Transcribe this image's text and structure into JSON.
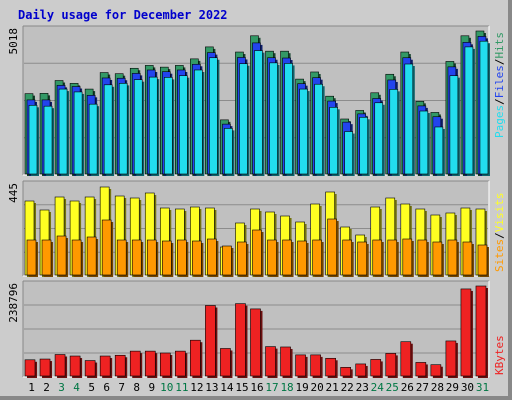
{
  "chart_title": "Daily usage for December 2022",
  "colors": {
    "hits": "#339966",
    "files": "#2244ee",
    "pages": "#22ddee",
    "visits": "#ffff22",
    "sites": "#ff9900",
    "kbytes": "#ee2222",
    "weekday_label": "#000000",
    "weekend_label": "#007744"
  },
  "chart_data": [
    {
      "type": "bar",
      "panel": "hits-files-pages",
      "max_label": "5018",
      "ylim": [
        0,
        5018
      ],
      "legend": [
        "Pages",
        "Files",
        "Hits"
      ],
      "x": [
        1,
        2,
        3,
        4,
        5,
        6,
        7,
        8,
        9,
        10,
        11,
        12,
        13,
        14,
        15,
        16,
        17,
        18,
        19,
        20,
        21,
        22,
        23,
        24,
        25,
        26,
        27,
        28,
        29,
        30,
        31
      ],
      "series": [
        {
          "name": "Hits",
          "values": [
            2820,
            2830,
            3280,
            3180,
            2980,
            3560,
            3520,
            3710,
            3810,
            3750,
            3810,
            4040,
            4460,
            1900,
            4280,
            4850,
            4310,
            4310,
            3330,
            3580,
            2730,
            1930,
            2230,
            2850,
            3500,
            4280,
            2550,
            2160,
            3950,
            4850,
            5018
          ]
        },
        {
          "name": "Files",
          "values": [
            2600,
            2600,
            3110,
            3070,
            2760,
            3370,
            3360,
            3530,
            3650,
            3590,
            3650,
            3850,
            4260,
            1750,
            4090,
            4600,
            4080,
            4070,
            3170,
            3380,
            2560,
            1820,
            2110,
            2650,
            3300,
            4080,
            2390,
            2010,
            3760,
            4620,
            4830
          ]
        },
        {
          "name": "Pages",
          "values": [
            2410,
            2380,
            2980,
            2880,
            2450,
            3130,
            3180,
            3310,
            3400,
            3390,
            3450,
            3650,
            4080,
            1600,
            3870,
            4330,
            3900,
            3880,
            2980,
            3150,
            2340,
            1490,
            1990,
            2500,
            2970,
            3860,
            2210,
            1650,
            3450,
            4460,
            4660
          ]
        }
      ]
    },
    {
      "type": "bar",
      "panel": "visits-sites",
      "max_label": "445",
      "ylim": [
        0,
        445
      ],
      "legend": [
        "Sites",
        "Visits"
      ],
      "x": [
        1,
        2,
        3,
        4,
        5,
        6,
        7,
        8,
        9,
        10,
        11,
        12,
        13,
        14,
        15,
        16,
        17,
        18,
        19,
        20,
        21,
        22,
        23,
        24,
        25,
        26,
        27,
        28,
        29,
        30,
        31
      ],
      "series": [
        {
          "name": "Visits",
          "values": [
            370,
            325,
            390,
            370,
            390,
            440,
            395,
            385,
            410,
            335,
            330,
            340,
            335,
            140,
            260,
            330,
            315,
            295,
            265,
            355,
            415,
            240,
            200,
            340,
            385,
            355,
            330,
            300,
            310,
            335,
            330
          ]
        },
        {
          "name": "Sites",
          "values": [
            175,
            175,
            195,
            175,
            190,
            275,
            175,
            175,
            175,
            170,
            175,
            170,
            180,
            145,
            165,
            225,
            175,
            175,
            170,
            175,
            280,
            175,
            165,
            175,
            175,
            180,
            175,
            165,
            175,
            165,
            150
          ]
        }
      ]
    },
    {
      "type": "bar",
      "panel": "kbytes",
      "max_label": "238796",
      "ylim": [
        0,
        238796
      ],
      "legend": [
        "KBytes"
      ],
      "x": [
        1,
        2,
        3,
        4,
        5,
        6,
        7,
        8,
        9,
        10,
        11,
        12,
        13,
        14,
        15,
        16,
        17,
        18,
        19,
        20,
        21,
        22,
        23,
        24,
        25,
        26,
        27,
        28,
        29,
        30,
        31
      ],
      "series": [
        {
          "name": "KBytes",
          "values": [
            43000,
            45000,
            57000,
            53000,
            41000,
            53000,
            55000,
            66000,
            66000,
            61000,
            66000,
            95000,
            187000,
            73000,
            192000,
            178000,
            78000,
            77000,
            56000,
            56000,
            47000,
            23000,
            32000,
            44000,
            60000,
            91000,
            36000,
            30000,
            93000,
            231000,
            238796
          ]
        }
      ]
    }
  ],
  "day_labels": [
    "1",
    "2",
    "3",
    "4",
    "5",
    "6",
    "7",
    "8",
    "9",
    "10",
    "11",
    "12",
    "13",
    "14",
    "15",
    "16",
    "17",
    "18",
    "19",
    "20",
    "21",
    "22",
    "23",
    "24",
    "25",
    "26",
    "27",
    "28",
    "29",
    "30",
    "31"
  ],
  "weekend_days": [
    3,
    4,
    10,
    11,
    17,
    18,
    24,
    25,
    31
  ]
}
